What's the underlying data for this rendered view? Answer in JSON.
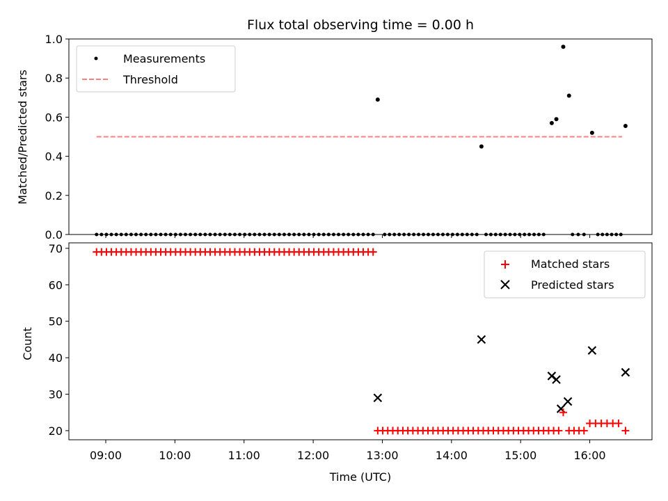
{
  "chart_data": [
    {
      "type": "scatter",
      "title": "Flux total observing time = 0.00 h",
      "xlabel": "",
      "ylabel": "Matched/Predicted stars",
      "ylim": [
        0,
        1.0
      ],
      "yticks": [
        "0.0",
        "0.2",
        "0.4",
        "0.6",
        "0.8",
        "1.0"
      ],
      "legend_position": "top-left",
      "series": [
        {
          "name": "Measurements",
          "marker": "dot",
          "color": "#000000",
          "points": [
            [
              "12:56",
              0.69
            ],
            [
              "14:26",
              0.45
            ],
            [
              "15:27",
              0.57
            ],
            [
              "15:31",
              0.59
            ],
            [
              "15:37",
              0.96
            ],
            [
              "15:42",
              0.71
            ],
            [
              "16:02",
              0.52
            ],
            [
              "16:31",
              0.555
            ]
          ],
          "zero_runs": [
            {
              "start": "08:52",
              "end": "12:52",
              "count": 57
            },
            {
              "start": "13:02",
              "end": "14:22",
              "count": 20
            },
            {
              "start": "14:30",
              "end": "15:20",
              "count": 13
            },
            {
              "start": "15:45",
              "end": "15:55",
              "count": 3
            },
            {
              "start": "16:07",
              "end": "16:27",
              "count": 6
            }
          ]
        },
        {
          "name": "Threshold",
          "line_style": "dashed",
          "color": "#ff7f7f",
          "points": [
            [
              "08:52",
              0.5
            ],
            [
              "16:28",
              0.5
            ]
          ]
        }
      ]
    },
    {
      "type": "scatter",
      "title": "",
      "xlabel": "Time (UTC)",
      "ylabel": "Count",
      "ylim": [
        17.5,
        71.5
      ],
      "yticks": [
        "20",
        "30",
        "40",
        "50",
        "60",
        "70"
      ],
      "xticks": [
        "09:00",
        "10:00",
        "11:00",
        "12:00",
        "13:00",
        "14:00",
        "15:00",
        "16:00"
      ],
      "xlim": [
        "08:28",
        "16:54"
      ],
      "legend_position": "top-right",
      "series": [
        {
          "name": "Matched stars",
          "marker": "plus",
          "color": "#ff0000",
          "runs": [
            {
              "start": "08:52",
              "end": "12:52",
              "count": 57,
              "value": 69
            },
            {
              "start": "12:56",
              "end": "15:33",
              "count": 37,
              "value": 20
            },
            {
              "start": "15:37",
              "end": "15:37",
              "count": 1,
              "value": 25
            },
            {
              "start": "15:42",
              "end": "15:55",
              "count": 4,
              "value": 20
            },
            {
              "start": "16:00",
              "end": "16:25",
              "count": 6,
              "value": 22
            },
            {
              "start": "16:31",
              "end": "16:31",
              "count": 1,
              "value": 20
            }
          ]
        },
        {
          "name": "Predicted stars",
          "marker": "x",
          "color": "#000000",
          "points": [
            [
              "12:56",
              29
            ],
            [
              "14:26",
              45
            ],
            [
              "15:27",
              35
            ],
            [
              "15:31",
              34
            ],
            [
              "15:35",
              26
            ],
            [
              "15:41",
              28
            ],
            [
              "16:02",
              42
            ],
            [
              "16:31",
              36
            ]
          ]
        }
      ]
    }
  ]
}
